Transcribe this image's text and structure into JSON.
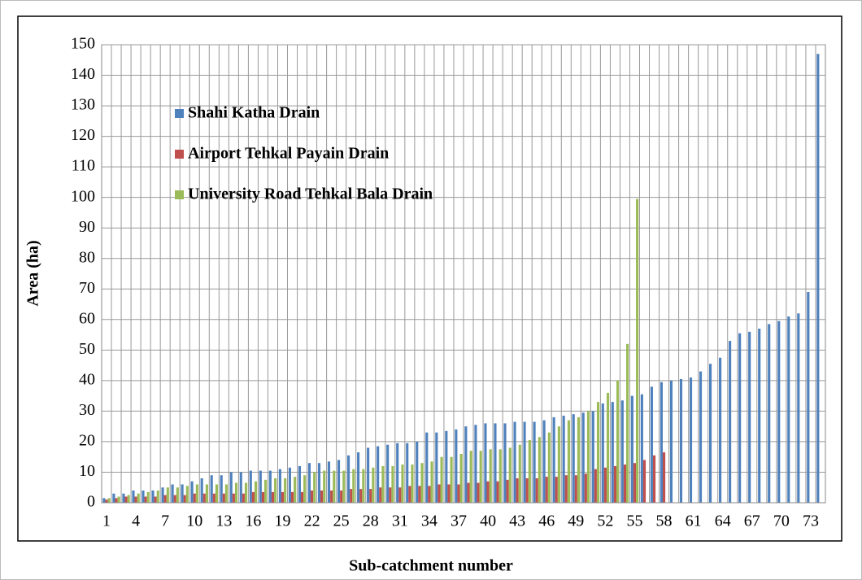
{
  "chart_data": {
    "type": "bar",
    "x_label": "Sub-catchment number",
    "y_label": "Area (ha)",
    "categories": [
      "1",
      null,
      null,
      "4",
      null,
      null,
      "7",
      null,
      null,
      "10",
      null,
      null,
      "13",
      null,
      null,
      "16",
      null,
      null,
      "19",
      null,
      null,
      "22",
      null,
      null,
      "25",
      null,
      null,
      "28",
      null,
      null,
      "31",
      null,
      null,
      "34",
      null,
      null,
      "37",
      null,
      null,
      "40",
      null,
      null,
      "43",
      null,
      null,
      "46",
      null,
      null,
      "49",
      null,
      null,
      "52",
      null,
      null,
      "55",
      null,
      null,
      "58",
      null,
      null,
      "61",
      null,
      null,
      "64",
      null,
      null,
      "67",
      null,
      null,
      "70",
      null,
      null,
      "73",
      null
    ],
    "series": [
      {
        "name": "Shahi Katha Drain",
        "color": "#4f81bd",
        "values": [
          1.5,
          3,
          3,
          4,
          4,
          4,
          5,
          6,
          6,
          7,
          8,
          9,
          9,
          10,
          10,
          10.5,
          10.5,
          10.5,
          11,
          11.5,
          12,
          13,
          13,
          13.5,
          14,
          15.5,
          16.5,
          18,
          18.5,
          19,
          19.5,
          19.5,
          20,
          23,
          23,
          23.5,
          24,
          25,
          25.5,
          26,
          26,
          26,
          26.5,
          26.5,
          26.5,
          27,
          28,
          28.5,
          29,
          29.5,
          30,
          32.5,
          33,
          33.5,
          35,
          35.5,
          38,
          39.5,
          40,
          40.5,
          41,
          43,
          45.5,
          47.5,
          53,
          55.5,
          56,
          57,
          58.5,
          59.5,
          61,
          62,
          69,
          147
        ]
      },
      {
        "name": "Airport Tehkal Payain Drain",
        "color": "#c0504d",
        "values": [
          1,
          1.5,
          2,
          2,
          2,
          2,
          2.5,
          2.5,
          2.5,
          3,
          3,
          3,
          3,
          3,
          3,
          3.5,
          3.5,
          3.5,
          3.5,
          3.5,
          3.5,
          4,
          4,
          4,
          4,
          4.5,
          4.5,
          4.5,
          5,
          5,
          5,
          5.5,
          5.5,
          5.5,
          6,
          6,
          6,
          6.5,
          6.5,
          7,
          7,
          7.5,
          8,
          8,
          8,
          8.5,
          8.5,
          9,
          9,
          9.5,
          11,
          11.5,
          12,
          12.5,
          13,
          14,
          15.5,
          16.5,
          null,
          null,
          null,
          null,
          null,
          null,
          null,
          null,
          null,
          null,
          null,
          null,
          null,
          null,
          null,
          null
        ]
      },
      {
        "name": "University Road Tehkal Bala Drain",
        "color": "#9bbb59",
        "values": [
          1.5,
          2,
          2.5,
          3,
          3.5,
          4,
          5,
          5,
          5.5,
          6,
          6,
          6,
          6,
          6.5,
          6.5,
          7,
          7.5,
          8,
          8,
          8.5,
          9,
          10,
          10.5,
          10.5,
          10.5,
          11,
          11,
          11.5,
          12,
          12,
          12.5,
          12.5,
          13,
          13.5,
          15,
          15,
          16,
          17,
          17,
          17.5,
          17.5,
          18,
          19,
          20.5,
          21.5,
          23,
          25,
          27,
          28,
          30,
          33,
          36,
          40,
          52,
          99.5,
          null,
          null,
          null,
          null,
          null,
          null,
          null,
          null,
          null,
          null,
          null,
          null,
          null,
          null,
          null,
          null,
          null,
          null,
          null
        ]
      }
    ],
    "ylim": [
      0,
      150
    ],
    "yticks": [
      0,
      10,
      20,
      30,
      40,
      50,
      60,
      70,
      80,
      90,
      100,
      110,
      120,
      130,
      140,
      150
    ],
    "grid": true,
    "legend": "upper left"
  }
}
